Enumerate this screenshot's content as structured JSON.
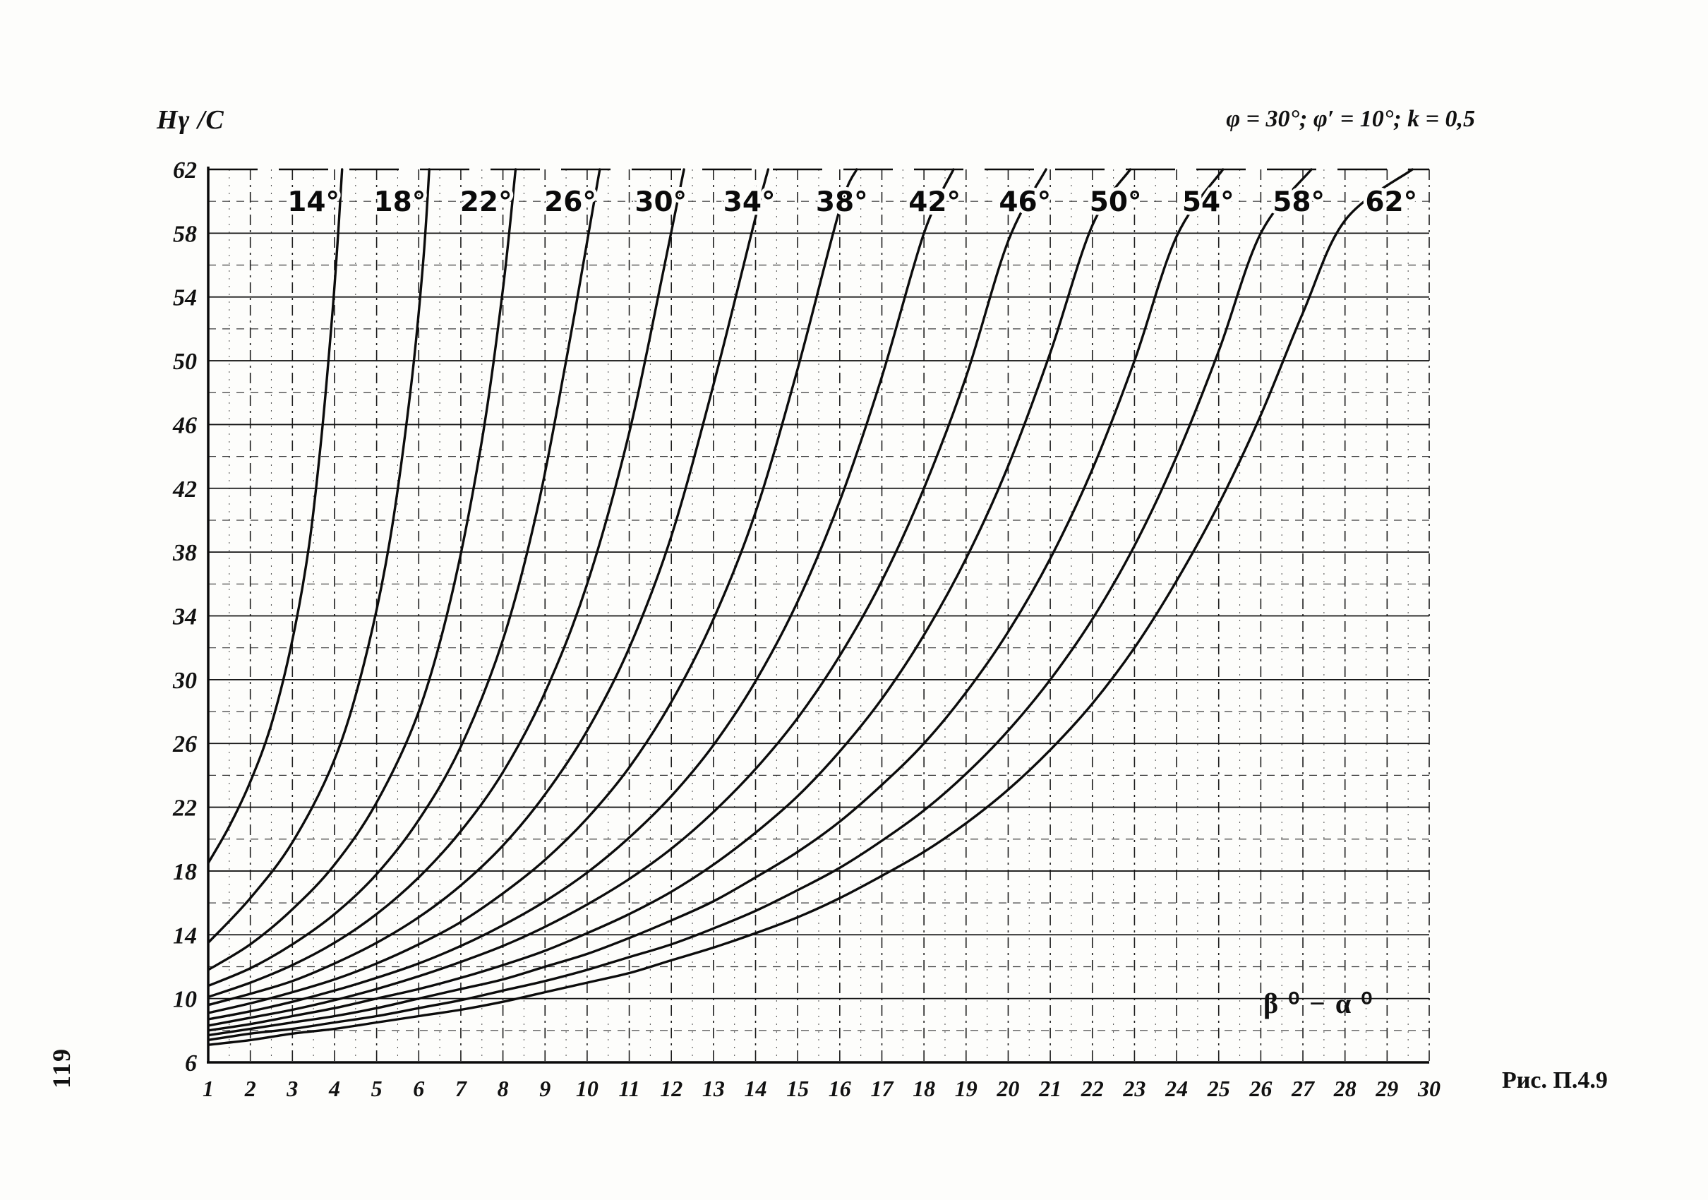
{
  "page": {
    "page_number": "119",
    "figure_caption": "Рис. П.4.9"
  },
  "chart_data": {
    "type": "line",
    "title": "φ = 30°; φ′ = 10°; k = 0,5",
    "ylabel": "Hγ /C",
    "xlabel": "β ⁰ − α ⁰",
    "xlim": [
      1,
      30
    ],
    "ylim": [
      6,
      62
    ],
    "x_ticks": [
      1,
      2,
      3,
      4,
      5,
      6,
      7,
      8,
      9,
      10,
      11,
      12,
      13,
      14,
      15,
      16,
      17,
      18,
      19,
      20,
      21,
      22,
      23,
      24,
      25,
      26,
      27,
      28,
      29,
      30
    ],
    "y_ticks": [
      6,
      10,
      14,
      18,
      22,
      26,
      30,
      34,
      38,
      42,
      46,
      50,
      54,
      58,
      62
    ],
    "grid": {
      "major_horizontal": "solid",
      "minor_horizontal": "dashed",
      "vertical": "dash-dot",
      "minor_vertical": "dotted"
    },
    "legend_position": "labels-above-curves",
    "curve_color": "#0c0c0c",
    "series": [
      {
        "name": "14°",
        "label_x": 3.5,
        "points": [
          [
            1,
            18.5
          ],
          [
            1.5,
            20.8
          ],
          [
            2,
            23.6
          ],
          [
            2.5,
            27.2
          ],
          [
            3,
            32.5
          ],
          [
            3.4,
            38.5
          ],
          [
            3.7,
            45.5
          ],
          [
            3.95,
            53
          ],
          [
            4.1,
            58.5
          ],
          [
            4.18,
            62
          ]
        ]
      },
      {
        "name": "18°",
        "label_x": 5.55,
        "points": [
          [
            1,
            13.5
          ],
          [
            2,
            16.3
          ],
          [
            3,
            19.8
          ],
          [
            4,
            25
          ],
          [
            4.7,
            31
          ],
          [
            5.3,
            38.5
          ],
          [
            5.8,
            48
          ],
          [
            6.1,
            56
          ],
          [
            6.25,
            62
          ]
        ]
      },
      {
        "name": "22°",
        "label_x": 7.6,
        "points": [
          [
            1,
            11.8
          ],
          [
            2,
            13.4
          ],
          [
            3,
            15.6
          ],
          [
            4,
            18.4
          ],
          [
            5,
            22.3
          ],
          [
            6,
            28
          ],
          [
            6.8,
            35.5
          ],
          [
            7.5,
            45
          ],
          [
            8,
            54.5
          ],
          [
            8.3,
            62
          ]
        ]
      },
      {
        "name": "26°",
        "label_x": 9.6,
        "points": [
          [
            1,
            10.8
          ],
          [
            2,
            11.9
          ],
          [
            3,
            13.4
          ],
          [
            4,
            15.3
          ],
          [
            5,
            17.8
          ],
          [
            6,
            21.2
          ],
          [
            7,
            25.8
          ],
          [
            8,
            32.5
          ],
          [
            8.8,
            40.5
          ],
          [
            9.5,
            50
          ],
          [
            10.1,
            59
          ],
          [
            10.3,
            62
          ]
        ]
      },
      {
        "name": "30°",
        "label_x": 11.75,
        "points": [
          [
            1,
            10.1
          ],
          [
            2,
            11
          ],
          [
            3,
            12.1
          ],
          [
            4,
            13.5
          ],
          [
            5,
            15.3
          ],
          [
            6,
            17.6
          ],
          [
            7,
            20.5
          ],
          [
            8,
            24.2
          ],
          [
            9,
            29.2
          ],
          [
            10,
            36
          ],
          [
            11,
            45.5
          ],
          [
            11.8,
            55.5
          ],
          [
            12.3,
            62
          ]
        ]
      },
      {
        "name": "34°",
        "label_x": 13.85,
        "points": [
          [
            1,
            9.6
          ],
          [
            2,
            10.3
          ],
          [
            3,
            11.1
          ],
          [
            4,
            12.2
          ],
          [
            5,
            13.5
          ],
          [
            6,
            15.1
          ],
          [
            7,
            17.1
          ],
          [
            8,
            19.6
          ],
          [
            9,
            22.8
          ],
          [
            10,
            26.8
          ],
          [
            11,
            32
          ],
          [
            12,
            39
          ],
          [
            13,
            48.5
          ],
          [
            14,
            59
          ],
          [
            14.3,
            62
          ]
        ]
      },
      {
        "name": "38°",
        "label_x": 16.05,
        "points": [
          [
            1,
            9.1
          ],
          [
            2,
            9.7
          ],
          [
            3,
            10.4
          ],
          [
            4,
            11.2
          ],
          [
            5,
            12.2
          ],
          [
            6,
            13.4
          ],
          [
            7,
            14.8
          ],
          [
            8,
            16.6
          ],
          [
            9,
            18.7
          ],
          [
            10,
            21.3
          ],
          [
            11,
            24.5
          ],
          [
            12,
            28.6
          ],
          [
            13,
            33.8
          ],
          [
            14,
            40.5
          ],
          [
            15,
            49.5
          ],
          [
            16,
            59.5
          ],
          [
            16.4,
            62
          ]
        ]
      },
      {
        "name": "42°",
        "label_x": 18.25,
        "points": [
          [
            1,
            8.7
          ],
          [
            2,
            9.2
          ],
          [
            3,
            9.8
          ],
          [
            4,
            10.5
          ],
          [
            5,
            11.3
          ],
          [
            6,
            12.2
          ],
          [
            7,
            13.3
          ],
          [
            8,
            14.6
          ],
          [
            9,
            16.1
          ],
          [
            10,
            17.9
          ],
          [
            11,
            20.1
          ],
          [
            12,
            22.7
          ],
          [
            13,
            25.9
          ],
          [
            14,
            29.9
          ],
          [
            15,
            34.9
          ],
          [
            16,
            41.2
          ],
          [
            17,
            49
          ],
          [
            18,
            58
          ],
          [
            18.7,
            62
          ]
        ]
      },
      {
        "name": "46°",
        "label_x": 20.4,
        "points": [
          [
            1,
            8.3
          ],
          [
            2,
            8.8
          ],
          [
            3,
            9.3
          ],
          [
            4,
            9.9
          ],
          [
            5,
            10.6
          ],
          [
            6,
            11.4
          ],
          [
            7,
            12.3
          ],
          [
            8,
            13.3
          ],
          [
            9,
            14.5
          ],
          [
            10,
            15.9
          ],
          [
            11,
            17.5
          ],
          [
            12,
            19.4
          ],
          [
            13,
            21.7
          ],
          [
            14,
            24.4
          ],
          [
            15,
            27.6
          ],
          [
            16,
            31.5
          ],
          [
            17,
            36.2
          ],
          [
            18,
            42
          ],
          [
            19,
            49
          ],
          [
            20,
            57.5
          ],
          [
            20.9,
            62
          ]
        ]
      },
      {
        "name": "50°",
        "label_x": 22.55,
        "points": [
          [
            1,
            8.0
          ],
          [
            2,
            8.4
          ],
          [
            3,
            8.9
          ],
          [
            4,
            9.4
          ],
          [
            5,
            10.0
          ],
          [
            6,
            10.6
          ],
          [
            7,
            11.3
          ],
          [
            8,
            12.1
          ],
          [
            9,
            13.0
          ],
          [
            10,
            14.1
          ],
          [
            11,
            15.3
          ],
          [
            12,
            16.7
          ],
          [
            13,
            18.4
          ],
          [
            14,
            20.4
          ],
          [
            15,
            22.7
          ],
          [
            16,
            25.5
          ],
          [
            17,
            28.8
          ],
          [
            18,
            32.8
          ],
          [
            19,
            37.6
          ],
          [
            20,
            43.4
          ],
          [
            21,
            50.5
          ],
          [
            22,
            58.5
          ],
          [
            22.9,
            62
          ]
        ]
      },
      {
        "name": "54°",
        "label_x": 24.75,
        "points": [
          [
            1,
            7.7
          ],
          [
            2,
            8.1
          ],
          [
            3,
            8.5
          ],
          [
            4,
            8.9
          ],
          [
            5,
            9.4
          ],
          [
            6,
            10.0
          ],
          [
            7,
            10.6
          ],
          [
            8,
            11.2
          ],
          [
            9,
            12.0
          ],
          [
            10,
            12.8
          ],
          [
            11,
            13.8
          ],
          [
            12,
            14.9
          ],
          [
            13,
            16.1
          ],
          [
            14,
            17.6
          ],
          [
            15,
            19.2
          ],
          [
            16,
            21.1
          ],
          [
            17,
            23.4
          ],
          [
            18,
            26.0
          ],
          [
            19,
            29.2
          ],
          [
            20,
            33.0
          ],
          [
            21,
            37.6
          ],
          [
            22,
            43.2
          ],
          [
            23,
            50.0
          ],
          [
            24,
            57.8
          ],
          [
            25.1,
            62
          ]
        ]
      },
      {
        "name": "58°",
        "label_x": 26.9,
        "points": [
          [
            1,
            7.4
          ],
          [
            2,
            7.8
          ],
          [
            3,
            8.1
          ],
          [
            4,
            8.5
          ],
          [
            5,
            8.9
          ],
          [
            6,
            9.4
          ],
          [
            7,
            9.9
          ],
          [
            8,
            10.5
          ],
          [
            9,
            11.1
          ],
          [
            10,
            11.8
          ],
          [
            11,
            12.6
          ],
          [
            12,
            13.4
          ],
          [
            13,
            14.4
          ],
          [
            14,
            15.5
          ],
          [
            15,
            16.8
          ],
          [
            16,
            18.2
          ],
          [
            17,
            19.9
          ],
          [
            18,
            21.8
          ],
          [
            19,
            24.1
          ],
          [
            20,
            26.8
          ],
          [
            21,
            30.0
          ],
          [
            22,
            33.8
          ],
          [
            23,
            38.4
          ],
          [
            24,
            44.0
          ],
          [
            25,
            50.6
          ],
          [
            26,
            58.0
          ],
          [
            27.2,
            62
          ]
        ]
      },
      {
        "name": "62°",
        "label_x": 29.1,
        "points": [
          [
            1,
            7.1
          ],
          [
            2,
            7.4
          ],
          [
            3,
            7.8
          ],
          [
            4,
            8.1
          ],
          [
            5,
            8.5
          ],
          [
            6,
            8.9
          ],
          [
            7,
            9.3
          ],
          [
            8,
            9.8
          ],
          [
            9,
            10.4
          ],
          [
            10,
            11.0
          ],
          [
            11,
            11.6
          ],
          [
            12,
            12.4
          ],
          [
            13,
            13.2
          ],
          [
            14,
            14.1
          ],
          [
            15,
            15.1
          ],
          [
            16,
            16.3
          ],
          [
            17,
            17.7
          ],
          [
            18,
            19.2
          ],
          [
            19,
            21.0
          ],
          [
            20,
            23.1
          ],
          [
            21,
            25.6
          ],
          [
            22,
            28.5
          ],
          [
            23,
            32.0
          ],
          [
            24,
            36.2
          ],
          [
            25,
            41.0
          ],
          [
            26,
            46.6
          ],
          [
            27,
            53.0
          ],
          [
            28,
            58.8
          ],
          [
            29.6,
            62
          ]
        ]
      }
    ]
  }
}
